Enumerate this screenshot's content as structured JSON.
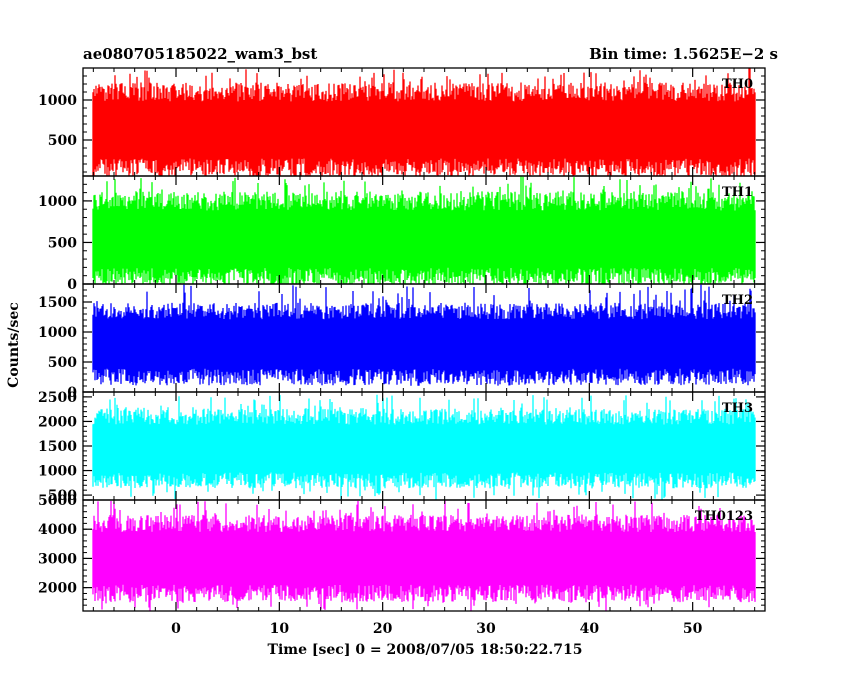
{
  "header": {
    "left_title": "ae080705185022_wam3_bst",
    "right_title": "Bin time: 1.5625E−2 s"
  },
  "chart_data": {
    "type": "line",
    "xlabel": "Time [sec] 0 = 2008/07/05 18:50:22.715",
    "ylabel": "Counts/sec",
    "xlim": [
      -9,
      57
    ],
    "x_ticks": [
      0,
      10,
      20,
      30,
      40,
      50
    ],
    "x_data_range": [
      -8,
      56
    ],
    "bin_time_s": 0.015625,
    "panels": [
      {
        "name": "TH0",
        "color": "#ff0000",
        "ylim": [
          50,
          1400
        ],
        "y_ticks": [
          500,
          1000
        ],
        "typical_range": [
          150,
          1100
        ],
        "extreme_range": [
          50,
          1400
        ]
      },
      {
        "name": "TH1",
        "color": "#00ff00",
        "ylim": [
          0,
          1300
        ],
        "y_ticks": [
          0,
          500,
          1000
        ],
        "typical_range": [
          80,
          1000
        ],
        "extreme_range": [
          0,
          1300
        ]
      },
      {
        "name": "TH2",
        "color": "#0000ff",
        "ylim": [
          0,
          1800
        ],
        "y_ticks": [
          0,
          500,
          1000,
          1500
        ],
        "typical_range": [
          250,
          1350
        ],
        "extreme_range": [
          100,
          1800
        ]
      },
      {
        "name": "TH3",
        "color": "#00ffff",
        "ylim": [
          400,
          2600
        ],
        "y_ticks": [
          500,
          1000,
          1500,
          2000,
          2500
        ],
        "typical_range": [
          800,
          2100
        ],
        "extreme_range": [
          400,
          2550
        ]
      },
      {
        "name": "TH0123",
        "color": "#ff00ff",
        "ylim": [
          1200,
          5000
        ],
        "y_ticks": [
          2000,
          3000,
          4000,
          5000
        ],
        "typical_range": [
          1800,
          4200
        ],
        "extreme_range": [
          1200,
          5000
        ]
      }
    ]
  }
}
